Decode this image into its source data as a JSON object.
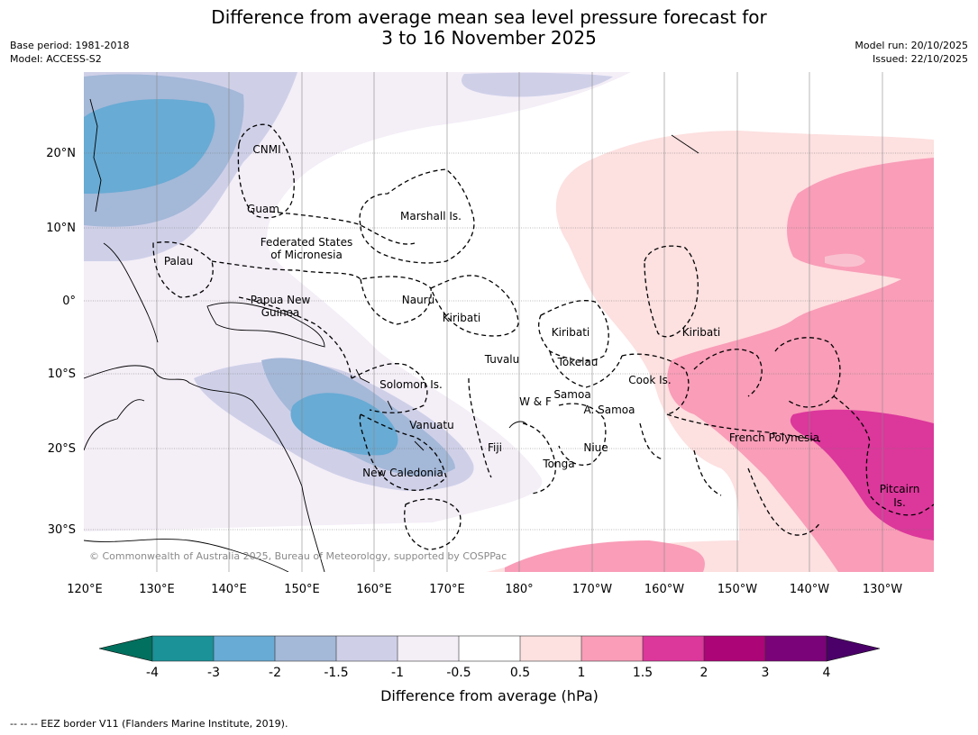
{
  "title_line1": "Difference from average mean sea level pressure forecast for",
  "title_line2": "3 to 16 November 2025",
  "base_period": "Base period: 1981-2018",
  "model": "Model: ACCESS-S2",
  "model_run": "Model run: 20/10/2025",
  "issued": "Issued: 22/10/2025",
  "copyright": "© Commonwealth of Australia 2025, Bureau of Meteorology, supported by COSPPac",
  "footer": "--  --  -- EEZ border V11 (Flanders Marine Institute, 2019).",
  "lon_labels": [
    "120°E",
    "130°E",
    "140°E",
    "150°E",
    "160°E",
    "170°E",
    "180°",
    "170°W",
    "160°W",
    "150°W",
    "140°W",
    "130°W"
  ],
  "lat_labels": [
    "20°N",
    "10°N",
    "0°",
    "10°S",
    "20°S",
    "30°S"
  ],
  "colorbar": {
    "title": "Difference from average (hPa)",
    "ticks": [
      "-4",
      "-3",
      "-2",
      "-1.5",
      "-1",
      "-0.5",
      "0.5",
      "1",
      "1.5",
      "2",
      "3",
      "4"
    ],
    "colors": [
      "#1a9297",
      "#68abd4",
      "#a4b8d8",
      "#cfd0e8",
      "#f4eef7",
      "#ffffff",
      "#fde0e0",
      "#f99db8",
      "#dc379b",
      "#ac0577",
      "#7b0379"
    ],
    "under_color": "#01705e",
    "over_color": "#4a0068"
  },
  "region_labels": [
    {
      "name": "CNMI"
    },
    {
      "name": "Guam"
    },
    {
      "name": "Marshall Is."
    },
    {
      "name": "Federated States"
    },
    {
      "name": "of Micronesia"
    },
    {
      "name": "Palau"
    },
    {
      "name": "Papua New"
    },
    {
      "name": "Guinea"
    },
    {
      "name": "Nauru"
    },
    {
      "name": "Kiribati"
    },
    {
      "name": "Kiribati"
    },
    {
      "name": "Kiribati"
    },
    {
      "name": "Tuvalu"
    },
    {
      "name": "Tokelau"
    },
    {
      "name": "Solomon Is."
    },
    {
      "name": "Cook Is."
    },
    {
      "name": "W & F"
    },
    {
      "name": "Samoa"
    },
    {
      "name": "A. Samoa"
    },
    {
      "name": "Vanuatu"
    },
    {
      "name": "Fiji"
    },
    {
      "name": "Niue"
    },
    {
      "name": "French Polynesia"
    },
    {
      "name": "New Caledonia"
    },
    {
      "name": "Tonga"
    },
    {
      "name": "Pitcairn"
    },
    {
      "name": "Is."
    }
  ]
}
